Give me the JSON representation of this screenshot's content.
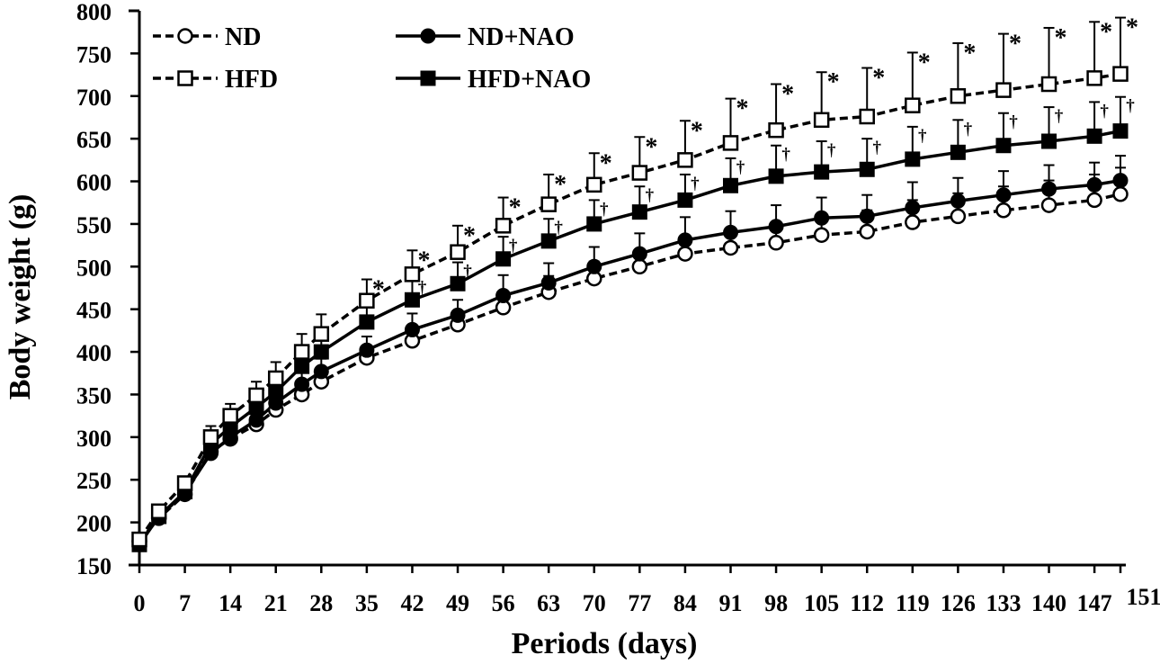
{
  "chart_data": {
    "type": "line",
    "title": "",
    "xlabel": "Periods (days)",
    "ylabel": "Body weight (g)",
    "ylim": [
      150,
      800
    ],
    "yticks": [
      "150",
      "200",
      "250",
      "300",
      "350",
      "400",
      "450",
      "500",
      "550",
      "600",
      "650",
      "700",
      "750",
      "800"
    ],
    "xtick_labels": [
      "0",
      "7",
      "14",
      "21",
      "28",
      "35",
      "42",
      "49",
      "56",
      "63",
      "70",
      "77",
      "84",
      "91",
      "98",
      "105",
      "112",
      "119",
      "126",
      "133",
      "140",
      "147",
      "151"
    ],
    "x": [
      0,
      3,
      7,
      11,
      14,
      18,
      21,
      25,
      28,
      35,
      42,
      49,
      56,
      63,
      70,
      77,
      84,
      91,
      98,
      105,
      112,
      119,
      126,
      133,
      140,
      147,
      151
    ],
    "legend_position": "top-left",
    "grid": false,
    "significance_marks": {
      "HFD": "*",
      "HFD+NAO": "†"
    },
    "series": [
      {
        "name": "ND",
        "marker": "open-circle",
        "line": "dashed",
        "values": [
          178,
          205,
          233,
          283,
          298,
          315,
          332,
          350,
          365,
          393,
          413,
          432,
          452,
          470,
          486,
          500,
          515,
          522,
          528,
          537,
          541,
          552,
          559,
          566,
          572,
          578,
          585
        ],
        "errors": [
          3,
          5,
          6,
          8,
          8,
          9,
          10,
          10,
          11,
          13,
          15,
          16,
          18,
          19,
          20,
          20,
          21,
          22,
          23,
          24,
          25,
          26,
          27,
          28,
          29,
          30,
          31
        ]
      },
      {
        "name": "ND+NAO",
        "marker": "filled-circle",
        "line": "solid",
        "values": [
          176,
          206,
          235,
          281,
          300,
          320,
          340,
          362,
          377,
          402,
          426,
          443,
          466,
          481,
          500,
          515,
          531,
          540,
          547,
          557,
          559,
          569,
          577,
          584,
          591,
          596,
          601
        ],
        "errors": [
          3,
          5,
          6,
          8,
          9,
          10,
          12,
          14,
          15,
          16,
          19,
          18,
          24,
          23,
          23,
          24,
          27,
          25,
          25,
          24,
          25,
          30,
          27,
          28,
          28,
          26,
          29
        ]
      },
      {
        "name": "HFD",
        "marker": "open-square",
        "line": "dashed",
        "values": [
          180,
          213,
          246,
          300,
          325,
          349,
          369,
          400,
          421,
          460,
          491,
          517,
          548,
          573,
          596,
          610,
          625,
          645,
          660,
          672,
          676,
          689,
          700,
          707,
          714,
          721,
          726
        ],
        "errors": [
          5,
          7,
          8,
          13,
          14,
          16,
          19,
          21,
          23,
          25,
          28,
          31,
          33,
          35,
          37,
          42,
          46,
          52,
          54,
          56,
          57,
          62,
          62,
          66,
          66,
          66,
          66
        ]
      },
      {
        "name": "HFD+NAO",
        "marker": "filled-square",
        "line": "solid",
        "values": [
          174,
          207,
          236,
          292,
          312,
          335,
          353,
          383,
          400,
          435,
          461,
          480,
          509,
          530,
          550,
          564,
          578,
          595,
          606,
          611,
          614,
          626,
          634,
          642,
          647,
          653,
          659
        ],
        "errors": [
          4,
          6,
          7,
          11,
          12,
          14,
          16,
          18,
          20,
          22,
          25,
          25,
          26,
          26,
          28,
          30,
          30,
          32,
          36,
          36,
          36,
          38,
          38,
          38,
          40,
          40,
          40
        ]
      }
    ]
  }
}
